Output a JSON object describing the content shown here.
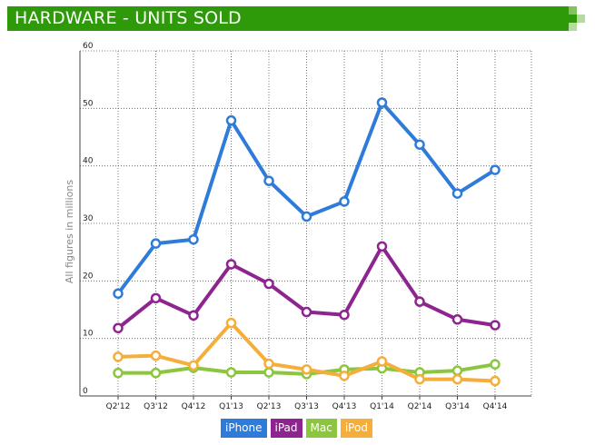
{
  "header": {
    "title": "HARDWARE - UNITS SOLD"
  },
  "chart_data": {
    "type": "line",
    "categories": [
      "Q2'12",
      "Q3'12",
      "Q4'12",
      "Q1'13",
      "Q2'13",
      "Q3'13",
      "Q4'13",
      "Q1'14",
      "Q2'14",
      "Q3'14",
      "Q4'14"
    ],
    "series": [
      {
        "name": "iPhone",
        "color": "#2f7bd9",
        "values": [
          17.8,
          26.5,
          27.2,
          47.9,
          37.4,
          31.2,
          33.8,
          51.0,
          43.7,
          35.2,
          39.3
        ]
      },
      {
        "name": "iPad",
        "color": "#8e2490",
        "values": [
          11.8,
          17.0,
          14.0,
          22.9,
          19.5,
          14.6,
          14.1,
          26.0,
          16.4,
          13.3,
          12.3
        ]
      },
      {
        "name": "Mac",
        "color": "#8cc63f",
        "values": [
          4.0,
          4.0,
          4.9,
          4.1,
          4.1,
          3.8,
          4.6,
          4.8,
          4.1,
          4.4,
          5.5
        ]
      },
      {
        "name": "iPod",
        "color": "#f5ae3a",
        "values": [
          6.8,
          7.0,
          5.3,
          12.7,
          5.6,
          4.6,
          3.5,
          6.0,
          2.9,
          2.9,
          2.6
        ]
      }
    ],
    "title": "HARDWARE - UNITS SOLD",
    "xlabel": "",
    "ylabel": "All figures in millions",
    "ylim": [
      0,
      60
    ],
    "yticks": [
      "0",
      "10",
      "20",
      "30",
      "40",
      "50",
      "60"
    ],
    "grid": true,
    "legend": "bottom-center"
  }
}
